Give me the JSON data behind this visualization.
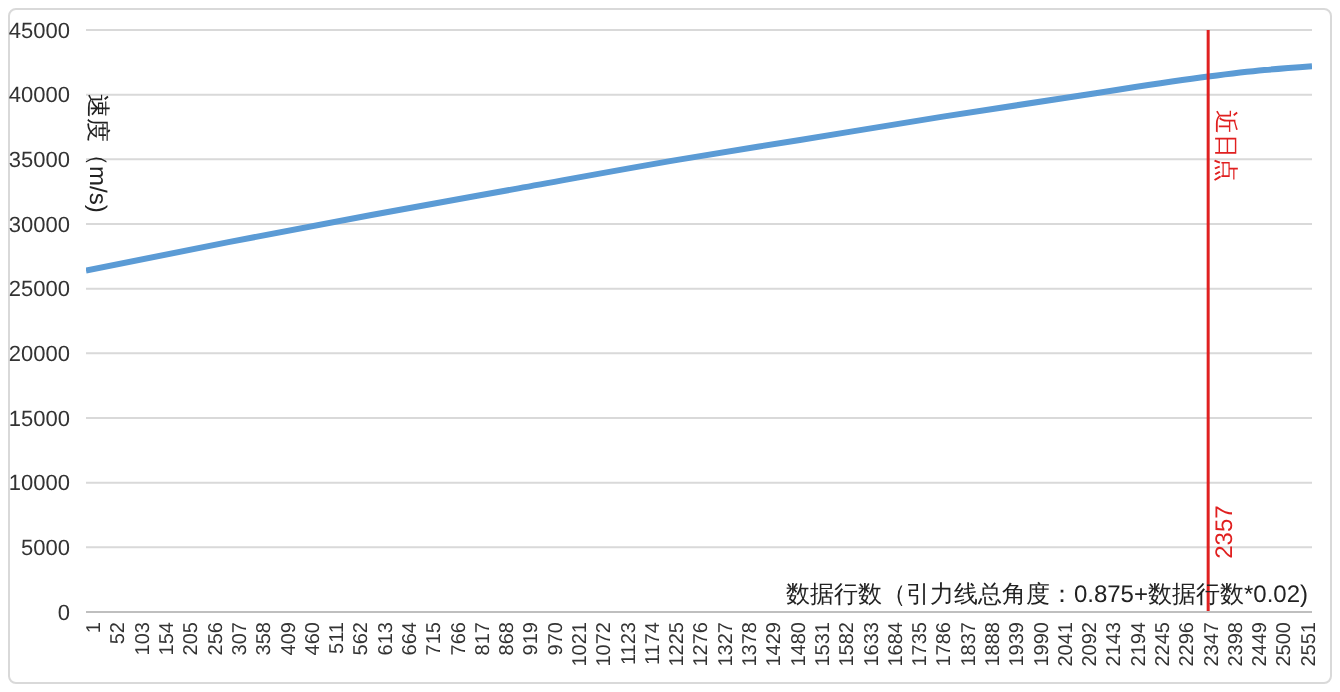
{
  "chart_data": {
    "type": "line",
    "xlabel": "数据行数（引力线总角度：0.875+数据行数*0.02)",
    "ylabel": "速度（m/s)",
    "x": [
      1,
      300,
      600,
      900,
      1249,
      1500,
      1800,
      2100,
      2357,
      2475,
      2575
    ],
    "series": [
      {
        "color": "#5b9bd5",
        "values": [
          26400,
          28600,
          30700,
          32700,
          35000,
          36500,
          38300,
          40000,
          41400,
          41900,
          42200
        ]
      }
    ],
    "xlim": [
      1,
      2575
    ],
    "xticks": [
      1,
      52,
      103,
      154,
      205,
      256,
      307,
      358,
      409,
      460,
      511,
      562,
      613,
      664,
      715,
      766,
      817,
      868,
      919,
      970,
      1021,
      1072,
      1123,
      1174,
      1225,
      1276,
      1327,
      1378,
      1429,
      1480,
      1531,
      1582,
      1633,
      1684,
      1735,
      1786,
      1837,
      1888,
      1939,
      1990,
      2041,
      2092,
      2143,
      2194,
      2245,
      2296,
      2347,
      2398,
      2449,
      2500,
      2551
    ],
    "ylim": [
      0,
      45000
    ],
    "yticks": [
      0,
      5000,
      10000,
      15000,
      20000,
      25000,
      30000,
      35000,
      40000,
      45000
    ],
    "grid": "y",
    "legend": false,
    "marker": "none",
    "line_style": "solid",
    "ref_lines": [
      {
        "axis": "x",
        "value": 2357,
        "label": "近日点",
        "color": "#e02020"
      }
    ],
    "annotations": [
      {
        "text": "2357",
        "x": 2357,
        "y": 3500
      }
    ]
  }
}
